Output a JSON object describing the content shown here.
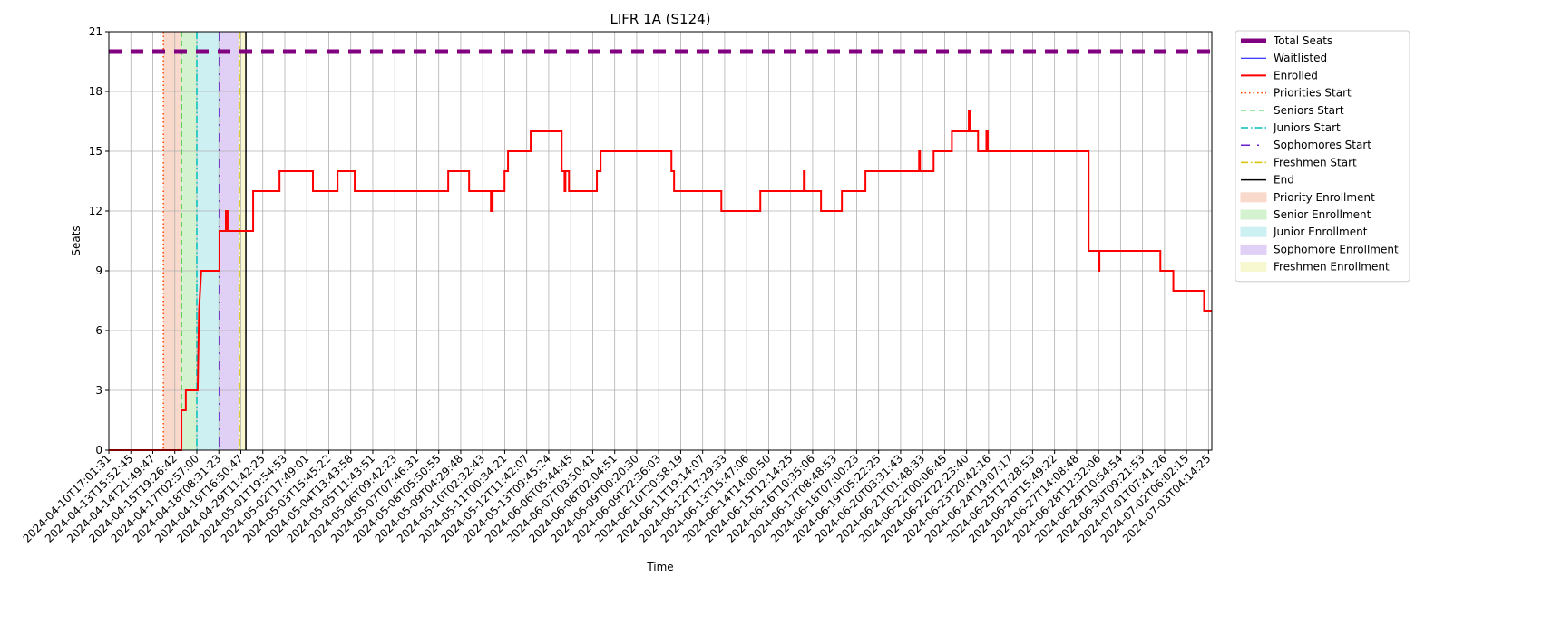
{
  "chart_data": {
    "type": "line",
    "title": "LIFR 1A (S124)",
    "x_label": "Time",
    "y_label": "Seats",
    "xlim": [
      0,
      50.15
    ],
    "ylim": [
      0,
      21
    ],
    "grid": true,
    "legend": "outside right",
    "yticks": [
      0,
      3,
      6,
      9,
      12,
      15,
      18,
      21
    ],
    "xticks": [
      {
        "value": 0,
        "label": "2024-04-10T17:01:31"
      },
      {
        "value": 1,
        "label": "2024-04-13T15:52:45"
      },
      {
        "value": 2,
        "label": "2024-04-14T21:49:47"
      },
      {
        "value": 3,
        "label": "2024-04-15T19:26:42"
      },
      {
        "value": 4,
        "label": "2024-04-17T02:57:00"
      },
      {
        "value": 5,
        "label": "2024-04-18T08:31:23"
      },
      {
        "value": 6,
        "label": "2024-04-19T16:50:47"
      },
      {
        "value": 7,
        "label": "2024-04-29T11:42:25"
      },
      {
        "value": 8,
        "label": "2024-05-01T19:54:53"
      },
      {
        "value": 9,
        "label": "2024-05-02T17:49:01"
      },
      {
        "value": 10,
        "label": "2024-05-03T15:45:22"
      },
      {
        "value": 11,
        "label": "2024-05-04T13:43:58"
      },
      {
        "value": 12,
        "label": "2024-05-05T11:43:51"
      },
      {
        "value": 13,
        "label": "2024-05-06T09:42:23"
      },
      {
        "value": 14,
        "label": "2024-05-07T07:46:31"
      },
      {
        "value": 15,
        "label": "2024-05-08T05:50:55"
      },
      {
        "value": 16,
        "label": "2024-05-09T04:29:48"
      },
      {
        "value": 17,
        "label": "2024-05-10T02:32:43"
      },
      {
        "value": 18,
        "label": "2024-05-11T00:34:21"
      },
      {
        "value": 19,
        "label": "2024-05-12T11:42:07"
      },
      {
        "value": 20,
        "label": "2024-05-13T09:45:24"
      },
      {
        "value": 21,
        "label": "2024-06-06T05:44:45"
      },
      {
        "value": 22,
        "label": "2024-06-07T03:50:41"
      },
      {
        "value": 23,
        "label": "2024-06-08T02:04:51"
      },
      {
        "value": 24,
        "label": "2024-06-09T00:20:30"
      },
      {
        "value": 25,
        "label": "2024-06-09T22:36:03"
      },
      {
        "value": 26,
        "label": "2024-06-10T20:58:19"
      },
      {
        "value": 27,
        "label": "2024-06-11T19:14:07"
      },
      {
        "value": 28,
        "label": "2024-06-12T17:29:33"
      },
      {
        "value": 29,
        "label": "2024-06-13T15:47:06"
      },
      {
        "value": 30,
        "label": "2024-06-14T14:00:50"
      },
      {
        "value": 31,
        "label": "2024-06-15T12:14:25"
      },
      {
        "value": 32,
        "label": "2024-06-16T10:35:06"
      },
      {
        "value": 33,
        "label": "2024-06-17T08:48:53"
      },
      {
        "value": 34,
        "label": "2024-06-18T07:00:23"
      },
      {
        "value": 35,
        "label": "2024-06-19T05:22:25"
      },
      {
        "value": 36,
        "label": "2024-06-20T03:31:43"
      },
      {
        "value": 37,
        "label": "2024-06-21T01:48:33"
      },
      {
        "value": 38,
        "label": "2024-06-22T00:06:45"
      },
      {
        "value": 39,
        "label": "2024-06-22T22:23:40"
      },
      {
        "value": 40,
        "label": "2024-06-23T20:42:16"
      },
      {
        "value": 41,
        "label": "2024-06-24T19:07:17"
      },
      {
        "value": 42,
        "label": "2024-06-25T17:28:53"
      },
      {
        "value": 43,
        "label": "2024-06-26T15:49:22"
      },
      {
        "value": 44,
        "label": "2024-06-27T14:08:48"
      },
      {
        "value": 45,
        "label": "2024-06-28T12:32:06"
      },
      {
        "value": 46,
        "label": "2024-06-29T10:54:54"
      },
      {
        "value": 47,
        "label": "2024-06-30T09:21:53"
      },
      {
        "value": 48,
        "label": "2024-07-01T07:41:26"
      },
      {
        "value": 49,
        "label": "2024-07-02T06:02:15"
      },
      {
        "value": 50,
        "label": "2024-07-03T04:14:25"
      }
    ],
    "series": [
      {
        "name": "Total Seats",
        "color": "#800080",
        "line_style": "dashed",
        "line_width": 5,
        "x": [
          0,
          50.15
        ],
        "values": [
          20,
          20
        ]
      },
      {
        "name": "Waitlisted",
        "color": "#0000ff",
        "line_style": "solid",
        "line_width": 1,
        "x": [
          0,
          50.15
        ],
        "values": [
          0,
          0
        ]
      },
      {
        "name": "Enrolled",
        "color": "#ff0000",
        "line_style": "solid",
        "line_width": 2,
        "x": [
          0,
          3.3,
          3.3,
          3.5,
          3.5,
          4.04,
          4.1,
          4.2,
          5.03,
          5.03,
          5.32,
          5.32,
          5.4,
          5.4,
          6.56,
          6.56,
          7.76,
          7.76,
          9.28,
          9.28,
          10.4,
          10.4,
          11.18,
          11.18,
          15.43,
          15.43,
          16.38,
          16.38,
          17.37,
          17.37,
          17.45,
          17.45,
          17.99,
          17.99,
          18.15,
          18.15,
          19.18,
          19.18,
          20.59,
          20.59,
          20.72,
          20.72,
          20.76,
          20.76,
          20.92,
          20.92,
          22.19,
          22.19,
          22.36,
          22.36,
          25.58,
          25.58,
          25.7,
          25.7,
          27.85,
          27.85,
          29.62,
          29.62,
          31.6,
          31.6,
          31.64,
          31.64,
          32.38,
          32.38,
          33.33,
          33.33,
          34.4,
          34.4,
          36.84,
          36.84,
          36.88,
          36.88,
          37.5,
          37.5,
          38.33,
          38.33,
          39.1,
          39.1,
          39.16,
          39.16,
          39.52,
          39.52,
          39.9,
          39.9,
          39.96,
          39.96,
          44.55,
          44.55,
          45.0,
          45.0,
          45.04,
          45.04,
          47.81,
          47.81,
          48.4,
          48.4,
          49.8,
          49.8,
          50.15
        ],
        "values": [
          0,
          0,
          2,
          2,
          3,
          3,
          7,
          9,
          9,
          11,
          11,
          12,
          12,
          11,
          11,
          13,
          13,
          14,
          14,
          13,
          13,
          14,
          14,
          13,
          13,
          14,
          14,
          13,
          13,
          12,
          12,
          13,
          13,
          14,
          14,
          15,
          15,
          16,
          16,
          14,
          14,
          13,
          13,
          14,
          14,
          13,
          13,
          14,
          14,
          15,
          15,
          14,
          14,
          13,
          13,
          12,
          12,
          13,
          13,
          14,
          14,
          13,
          13,
          12,
          12,
          13,
          13,
          14,
          14,
          15,
          15,
          14,
          14,
          15,
          15,
          16,
          16,
          17,
          17,
          16,
          16,
          15,
          15,
          16,
          16,
          15,
          15,
          10,
          10,
          9,
          9,
          10,
          10,
          9,
          9,
          8,
          8,
          7,
          7
        ]
      }
    ],
    "vlines": [
      {
        "name": "Priorities Start",
        "color": "#ff4500",
        "line_style": "dotted",
        "x": 2.48
      },
      {
        "name": "Seniors Start",
        "color": "#32cd32",
        "line_style": "dashed",
        "x": 3.3
      },
      {
        "name": "Juniors Start",
        "color": "#00bfbf",
        "line_style": "dashdot",
        "x": 4.0
      },
      {
        "name": "Sophomores Start",
        "color": "#6a1fd0",
        "line_style": "loosedashdot",
        "x": 5.03
      },
      {
        "name": "Freshmen Start",
        "color": "#d4c300",
        "line_style": "dashdot",
        "x": 5.94
      },
      {
        "name": "End",
        "color": "#000000",
        "line_style": "solid",
        "x": 6.23
      }
    ],
    "spans": [
      {
        "name": "Priority Enrollment",
        "color": "#f8d9cb",
        "x": [
          2.48,
          3.3
        ]
      },
      {
        "name": "Senior Enrollment",
        "color": "#d4f2cf",
        "x": [
          3.3,
          4.0
        ]
      },
      {
        "name": "Junior Enrollment",
        "color": "#cdf0f2",
        "x": [
          4.0,
          5.03
        ]
      },
      {
        "name": "Sophomore Enrollment",
        "color": "#e0d0f5",
        "x": [
          5.03,
          5.94
        ]
      },
      {
        "name": "Freshmen Enrollment",
        "color": "#f8f8d0",
        "x": [
          5.94,
          6.23
        ]
      }
    ]
  }
}
